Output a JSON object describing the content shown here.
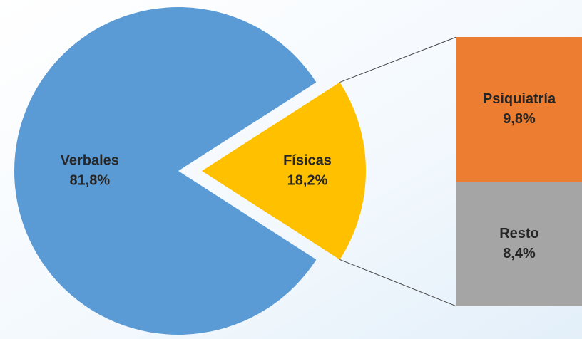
{
  "chart_data": {
    "type": "pie-of-bar",
    "categories": [
      "Verbales",
      "Físicas"
    ],
    "values": [
      81.8,
      18.2
    ],
    "value_labels": [
      "81,8%",
      "18,2%"
    ],
    "colors": [
      "#5b9bd5",
      "#ffc000"
    ],
    "breakdown": {
      "categories": [
        "Psiquiatría",
        "Resto"
      ],
      "values": [
        9.8,
        8.4
      ],
      "value_labels": [
        "9,8%",
        "8,4%"
      ],
      "colors": [
        "#ed7d31",
        "#a5a5a5"
      ]
    }
  }
}
